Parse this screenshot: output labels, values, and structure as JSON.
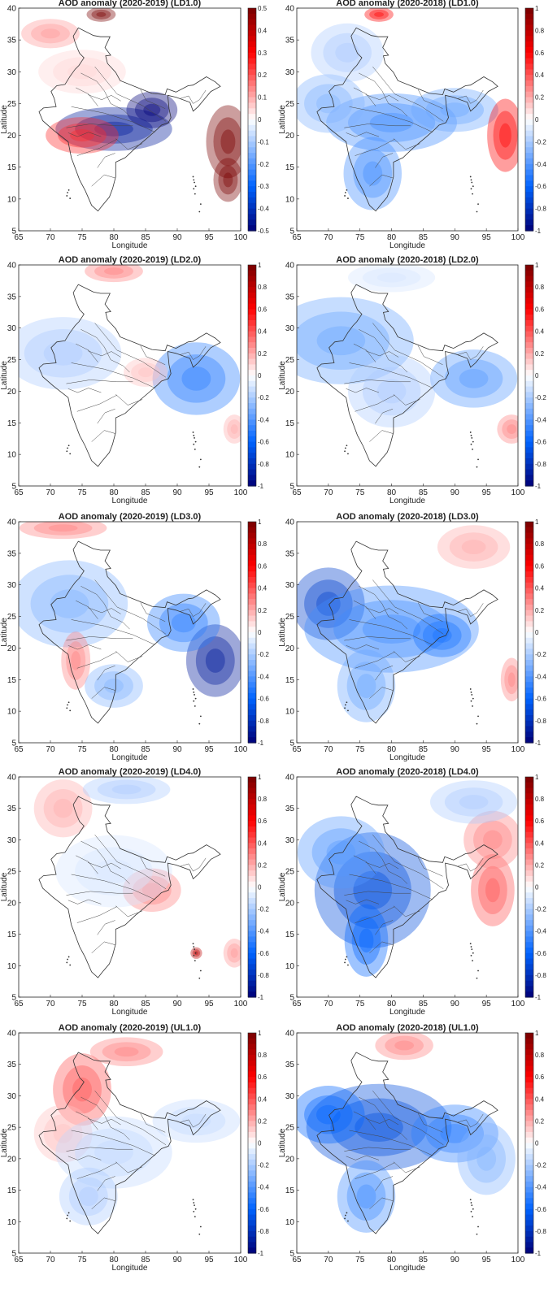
{
  "chart_data": [
    {
      "type": "heatmap",
      "title": "AOD anomaly (2020-2019)  (LD1.0)",
      "xlabel": "Longitude",
      "ylabel": "Latitude",
      "xlim": [
        65,
        100
      ],
      "ylim": [
        5,
        40
      ],
      "xticks": [
        "65",
        "70",
        "75",
        "80",
        "85",
        "90",
        "95",
        "100"
      ],
      "yticks": [
        "5",
        "10",
        "15",
        "20",
        "25",
        "30",
        "35",
        "40"
      ],
      "colorbar_ticks": [
        "0.5",
        "0.4",
        "0.3",
        "0.2",
        "0.1",
        "0",
        "-0.1",
        "-0.2",
        "-0.3",
        "-0.4",
        "-0.5"
      ],
      "clim": [
        -0.5,
        0.5
      ]
    },
    {
      "type": "heatmap",
      "title": "AOD anomaly (2020-2018)  (LD1.0)",
      "xlabel": "Longitude",
      "ylabel": "Latitude",
      "xlim": [
        65,
        100
      ],
      "ylim": [
        5,
        40
      ],
      "xticks": [
        "65",
        "70",
        "75",
        "80",
        "85",
        "90",
        "95",
        "100"
      ],
      "yticks": [
        "5",
        "10",
        "15",
        "20",
        "25",
        "30",
        "35",
        "40"
      ],
      "colorbar_ticks": [
        "1",
        "0.8",
        "0.6",
        "0.4",
        "0.2",
        "0",
        "-0.2",
        "-0.4",
        "-0.6",
        "-0.8",
        "-1"
      ],
      "clim": [
        -1,
        1
      ]
    },
    {
      "type": "heatmap",
      "title": "AOD anomaly (2020-2019)  (LD2.0)",
      "xlabel": "Longitude",
      "ylabel": "Latitude",
      "xlim": [
        65,
        100
      ],
      "ylim": [
        5,
        40
      ],
      "xticks": [
        "65",
        "70",
        "75",
        "80",
        "85",
        "90",
        "95",
        "100"
      ],
      "yticks": [
        "5",
        "10",
        "15",
        "20",
        "25",
        "30",
        "35",
        "40"
      ],
      "colorbar_ticks": [
        "1",
        "0.8",
        "0.6",
        "0.4",
        "0.2",
        "0",
        "-0.2",
        "-0.4",
        "-0.6",
        "-0.8",
        "-1"
      ],
      "clim": [
        -1,
        1
      ]
    },
    {
      "type": "heatmap",
      "title": "AOD anomaly (2020-2018)  (LD2.0)",
      "xlabel": "Longitude",
      "ylabel": "Latitude",
      "xlim": [
        65,
        100
      ],
      "ylim": [
        5,
        40
      ],
      "xticks": [
        "65",
        "70",
        "75",
        "80",
        "85",
        "90",
        "95",
        "100"
      ],
      "yticks": [
        "5",
        "10",
        "15",
        "20",
        "25",
        "30",
        "35",
        "40"
      ],
      "colorbar_ticks": [
        "1",
        "0.8",
        "0.6",
        "0.4",
        "0.2",
        "0",
        "-0.2",
        "-0.4",
        "-0.6",
        "-0.8",
        "-1"
      ],
      "clim": [
        -1,
        1
      ]
    },
    {
      "type": "heatmap",
      "title": "AOD anomaly (2020-2019)  (LD3.0)",
      "xlabel": "Longitude",
      "ylabel": "Latitude",
      "xlim": [
        65,
        100
      ],
      "ylim": [
        5,
        40
      ],
      "xticks": [
        "65",
        "70",
        "75",
        "80",
        "85",
        "90",
        "95",
        "100"
      ],
      "yticks": [
        "5",
        "10",
        "15",
        "20",
        "25",
        "30",
        "35",
        "40"
      ],
      "colorbar_ticks": [
        "1",
        "0.8",
        "0.6",
        "0.4",
        "0.2",
        "0",
        "-0.2",
        "-0.4",
        "-0.6",
        "-0.8",
        "-1"
      ],
      "clim": [
        -1,
        1
      ]
    },
    {
      "type": "heatmap",
      "title": "AOD anomaly (2020-2018)  (LD3.0)",
      "xlabel": "Longitude",
      "ylabel": "Latitude",
      "xlim": [
        65,
        100
      ],
      "ylim": [
        5,
        40
      ],
      "xticks": [
        "65",
        "70",
        "75",
        "80",
        "85",
        "90",
        "95",
        "100"
      ],
      "yticks": [
        "5",
        "10",
        "15",
        "20",
        "25",
        "30",
        "35",
        "40"
      ],
      "colorbar_ticks": [
        "1",
        "0.8",
        "0.6",
        "0.4",
        "0.2",
        "0",
        "-0.2",
        "-0.4",
        "-0.6",
        "-0.8",
        "-1"
      ],
      "clim": [
        -1,
        1
      ]
    },
    {
      "type": "heatmap",
      "title": "AOD anomaly (2020-2019) (LD4.0)",
      "xlabel": "Longitude",
      "ylabel": "Latitude",
      "xlim": [
        65,
        100
      ],
      "ylim": [
        5,
        40
      ],
      "xticks": [
        "65",
        "70",
        "75",
        "80",
        "85",
        "90",
        "95",
        "100"
      ],
      "yticks": [
        "5",
        "10",
        "15",
        "20",
        "25",
        "30",
        "35",
        "40"
      ],
      "colorbar_ticks": [
        "1",
        "0.8",
        "0.6",
        "0.4",
        "0.2",
        "0",
        "-0.2",
        "-0.4",
        "-0.6",
        "-0.8",
        "-1"
      ],
      "clim": [
        -1,
        1
      ]
    },
    {
      "type": "heatmap",
      "title": "AOD anomaly (2020-2018) (LD4.0)",
      "xlabel": "Longitude",
      "ylabel": "Latitude",
      "xlim": [
        65,
        100
      ],
      "ylim": [
        5,
        40
      ],
      "xticks": [
        "65",
        "70",
        "75",
        "80",
        "85",
        "90",
        "95",
        "100"
      ],
      "yticks": [
        "5",
        "10",
        "15",
        "20",
        "25",
        "30",
        "35",
        "40"
      ],
      "colorbar_ticks": [
        "1",
        "0.8",
        "0.6",
        "0.4",
        "0.2",
        "0",
        "-0.2",
        "-0.4",
        "-0.6",
        "-0.8",
        "-1"
      ],
      "clim": [
        -1,
        1
      ]
    },
    {
      "type": "heatmap",
      "title": "AOD anomaly (2020-2019) (UL1.0)",
      "xlabel": "Longitude",
      "ylabel": "Latitude",
      "xlim": [
        65,
        100
      ],
      "ylim": [
        5,
        40
      ],
      "xticks": [
        "65",
        "70",
        "75",
        "80",
        "85",
        "90",
        "95",
        "100"
      ],
      "yticks": [
        "5",
        "10",
        "15",
        "20",
        "25",
        "30",
        "35",
        "40"
      ],
      "colorbar_ticks": [
        "1",
        "0.8",
        "0.6",
        "0.4",
        "0.2",
        "0",
        "-0.2",
        "-0.4",
        "-0.6",
        "-0.8",
        "-1"
      ],
      "clim": [
        -1,
        1
      ]
    },
    {
      "type": "heatmap",
      "title": "AOD anomaly (2020-2018) (UL1.0)",
      "xlabel": "Longitude",
      "ylabel": "Latitude",
      "xlim": [
        65,
        100
      ],
      "ylim": [
        5,
        40
      ],
      "xticks": [
        "65",
        "70",
        "75",
        "80",
        "85",
        "90",
        "95",
        "100"
      ],
      "yticks": [
        "5",
        "10",
        "15",
        "20",
        "25",
        "30",
        "35",
        "40"
      ],
      "colorbar_ticks": [
        "1",
        "0.8",
        "0.6",
        "0.4",
        "0.2",
        "0",
        "-0.2",
        "-0.4",
        "-0.6",
        "-0.8",
        "-1"
      ],
      "clim": [
        -1,
        1
      ]
    }
  ],
  "blobs": [
    [
      [
        80,
        21,
        -0.45,
        8,
        3
      ],
      [
        86,
        24,
        -0.5,
        3.5,
        2.5
      ],
      [
        75,
        20,
        0.25,
        5,
        2.5
      ],
      [
        98,
        19,
        0.6,
        3,
        5
      ],
      [
        98,
        13,
        0.5,
        2,
        3
      ],
      [
        78,
        39,
        0.5,
        2,
        1
      ],
      [
        70,
        36,
        0.12,
        4,
        2
      ],
      [
        75,
        30,
        0.05,
        6,
        3
      ]
    ],
    [
      [
        80,
        22,
        -0.45,
        9,
        4
      ],
      [
        77,
        14,
        -0.45,
        4,
        5
      ],
      [
        70,
        25,
        -0.3,
        5,
        4
      ],
      [
        90,
        24,
        -0.35,
        6,
        3
      ],
      [
        98,
        20,
        0.6,
        2.5,
        5
      ],
      [
        78,
        39,
        0.6,
        2,
        1
      ],
      [
        73,
        33,
        -0.2,
        5,
        4
      ]
    ],
    [
      [
        93,
        22,
        -0.5,
        6,
        5
      ],
      [
        72,
        26,
        -0.2,
        8,
        5
      ],
      [
        85,
        23,
        0.15,
        3,
        2
      ],
      [
        80,
        39,
        0.3,
        4,
        1.5
      ],
      [
        99,
        14,
        0.2,
        1.5,
        2
      ]
    ],
    [
      [
        93,
        22,
        -0.4,
        6,
        4
      ],
      [
        72,
        28,
        -0.35,
        10,
        6
      ],
      [
        80,
        20,
        -0.2,
        6,
        5
      ],
      [
        99,
        14,
        0.3,
        2,
        2
      ],
      [
        80,
        38,
        -0.1,
        6,
        2
      ]
    ],
    [
      [
        96,
        18,
        -0.9,
        4,
        5
      ],
      [
        91,
        24,
        -0.5,
        5,
        4
      ],
      [
        73,
        27,
        -0.3,
        8,
        6
      ],
      [
        74,
        18,
        0.3,
        2,
        4
      ],
      [
        72,
        39,
        0.3,
        6,
        1.5
      ],
      [
        80,
        14,
        -0.3,
        4,
        3
      ]
    ],
    [
      [
        70,
        27,
        -0.75,
        5,
        5
      ],
      [
        80,
        23,
        -0.45,
        12,
        6
      ],
      [
        88,
        22,
        -0.55,
        4,
        3
      ],
      [
        76,
        14,
        -0.35,
        4,
        5
      ],
      [
        99,
        15,
        0.3,
        1.5,
        3
      ],
      [
        93,
        36,
        0.2,
        5,
        3
      ]
    ],
    [
      [
        72,
        35,
        0.2,
        4,
        4
      ],
      [
        86,
        22,
        0.3,
        4,
        3
      ],
      [
        80,
        25,
        -0.1,
        8,
        5
      ],
      [
        82,
        38,
        -0.2,
        6,
        2
      ],
      [
        93,
        12,
        0.8,
        0.8,
        0.8
      ],
      [
        99,
        12,
        0.25,
        1.5,
        2
      ]
    ],
    [
      [
        77,
        22,
        -0.7,
        8,
        8
      ],
      [
        72,
        28,
        -0.4,
        6,
        5
      ],
      [
        76,
        14,
        -0.6,
        3,
        5
      ],
      [
        96,
        22,
        0.4,
        3,
        5
      ],
      [
        96,
        30,
        0.3,
        4,
        4
      ],
      [
        93,
        36,
        -0.2,
        6,
        3
      ]
    ],
    [
      [
        75,
        31,
        0.4,
        4,
        5
      ],
      [
        72,
        24,
        0.15,
        4,
        4
      ],
      [
        82,
        37,
        0.3,
        5,
        2
      ],
      [
        80,
        21,
        -0.15,
        8,
        5
      ],
      [
        93,
        26,
        -0.15,
        6,
        3
      ],
      [
        76,
        14,
        -0.2,
        4,
        4
      ]
    ],
    [
      [
        78,
        25,
        -0.7,
        10,
        6
      ],
      [
        70,
        27,
        -0.6,
        5,
        4
      ],
      [
        90,
        24,
        -0.5,
        6,
        4
      ],
      [
        76,
        14,
        -0.45,
        4,
        5
      ],
      [
        95,
        20,
        -0.3,
        4,
        5
      ],
      [
        82,
        38,
        0.3,
        4,
        2
      ]
    ]
  ],
  "india_outline": [
    [
      68.2,
      23.7
    ],
    [
      68.8,
      22.3
    ],
    [
      70.5,
      20.8
    ],
    [
      72.8,
      19.0
    ],
    [
      73.3,
      16.5
    ],
    [
      74.6,
      13.0
    ],
    [
      75.5,
      11.3
    ],
    [
      76.5,
      9.0
    ],
    [
      77.5,
      8.1
    ],
    [
      78.2,
      9.0
    ],
    [
      79.3,
      10.3
    ],
    [
      79.8,
      11.6
    ],
    [
      80.3,
      13.5
    ],
    [
      80.3,
      15.8
    ],
    [
      81.8,
      16.5
    ],
    [
      83.4,
      18.0
    ],
    [
      85.3,
      19.6
    ],
    [
      86.9,
      21.0
    ],
    [
      87.5,
      21.6
    ],
    [
      88.6,
      22.0
    ],
    [
      89.0,
      22.8
    ],
    [
      88.7,
      24.2
    ],
    [
      88.5,
      26.3
    ],
    [
      89.8,
      26.0
    ],
    [
      92.0,
      25.2
    ],
    [
      92.5,
      23.8
    ],
    [
      93.3,
      24.5
    ],
    [
      94.2,
      25.6
    ],
    [
      95.3,
      26.9
    ],
    [
      96.8,
      27.7
    ],
    [
      96.0,
      28.4
    ],
    [
      94.6,
      29.2
    ],
    [
      92.5,
      27.9
    ],
    [
      91.7,
      27.8
    ],
    [
      89.8,
      26.8
    ],
    [
      88.4,
      27.3
    ],
    [
      88.1,
      26.4
    ],
    [
      86.0,
      26.6
    ],
    [
      84.0,
      27.4
    ],
    [
      81.0,
      28.6
    ],
    [
      80.3,
      29.9
    ],
    [
      79.0,
      31.3
    ],
    [
      78.7,
      32.5
    ],
    [
      79.5,
      32.6
    ],
    [
      78.6,
      33.8
    ],
    [
      79.4,
      35.5
    ],
    [
      77.9,
      35.5
    ],
    [
      76.8,
      35.7
    ],
    [
      74.4,
      36.9
    ],
    [
      73.6,
      35.6
    ],
    [
      73.9,
      34.6
    ],
    [
      74.3,
      33.6
    ],
    [
      74.6,
      32.9
    ],
    [
      75.3,
      32.2
    ],
    [
      74.5,
      31.0
    ],
    [
      73.9,
      30.4
    ],
    [
      73.1,
      29.3
    ],
    [
      72.3,
      28.0
    ],
    [
      71.0,
      27.8
    ],
    [
      70.1,
      26.9
    ],
    [
      70.6,
      25.8
    ],
    [
      70.9,
      24.5
    ],
    [
      68.9,
      24.3
    ],
    [
      68.2,
      23.7
    ]
  ],
  "state_lines": [
    [
      [
        77,
        30.8
      ],
      [
        80.5,
        26.5
      ],
      [
        84.5,
        24.7
      ],
      [
        88.2,
        22.2
      ]
    ],
    [
      [
        73.3,
        24.5
      ],
      [
        78.5,
        23.5
      ],
      [
        83,
        22.1
      ],
      [
        86.5,
        20.5
      ]
    ],
    [
      [
        72.5,
        21.2
      ],
      [
        76.3,
        21.8
      ],
      [
        80.5,
        21.5
      ],
      [
        83,
        21.5
      ]
    ],
    [
      [
        74.2,
        16.8
      ],
      [
        77.8,
        18.0
      ],
      [
        80.5,
        19.4
      ]
    ],
    [
      [
        76.5,
        12.0
      ],
      [
        78.5,
        13.8
      ],
      [
        80.2,
        13.3
      ]
    ],
    [
      [
        74.8,
        29.8
      ],
      [
        77.3,
        28.5
      ],
      [
        78.5,
        27.0
      ],
      [
        79.5,
        25.0
      ],
      [
        81.5,
        24.0
      ],
      [
        82.5,
        23.0
      ]
    ],
    [
      [
        74,
        27.5
      ],
      [
        76,
        26.5
      ],
      [
        77.5,
        24.6
      ]
    ],
    [
      [
        84.2,
        27.2
      ],
      [
        85.1,
        25.5
      ],
      [
        86.8,
        24.8
      ],
      [
        88.1,
        24.2
      ]
    ],
    [
      [
        80.3,
        19.5
      ],
      [
        82.2,
        17.8
      ],
      [
        84.5,
        18.7
      ]
    ],
    [
      [
        77.4,
        14.9
      ],
      [
        78.6,
        16.6
      ],
      [
        80.2,
        17.2
      ]
    ],
    [
      [
        75.9,
        26.4
      ],
      [
        78.1,
        25.6
      ],
      [
        79.6,
        26.3
      ],
      [
        81.1,
        25.4
      ]
    ],
    [
      [
        72.8,
        20.4
      ],
      [
        74.3,
        19.8
      ],
      [
        76,
        20.5
      ],
      [
        78,
        19.8
      ]
    ],
    [
      [
        90.5,
        25.8
      ],
      [
        91.8,
        26.2
      ],
      [
        92.5,
        25.0
      ],
      [
        93.5,
        25.6
      ],
      [
        94.5,
        27.1
      ]
    ]
  ],
  "island_points": [
    [
      92.5,
      13.5
    ],
    [
      92.7,
      12.6
    ],
    [
      92.9,
      12.0
    ],
    [
      92.6,
      11.6
    ],
    [
      92.8,
      10.8
    ],
    [
      93.7,
      9.2
    ],
    [
      93.5,
      8.0
    ],
    [
      92.6,
      13.0
    ],
    [
      72.7,
      11.0
    ],
    [
      73.1,
      10.1
    ],
    [
      72.6,
      10.5
    ],
    [
      72.9,
      11.4
    ]
  ]
}
